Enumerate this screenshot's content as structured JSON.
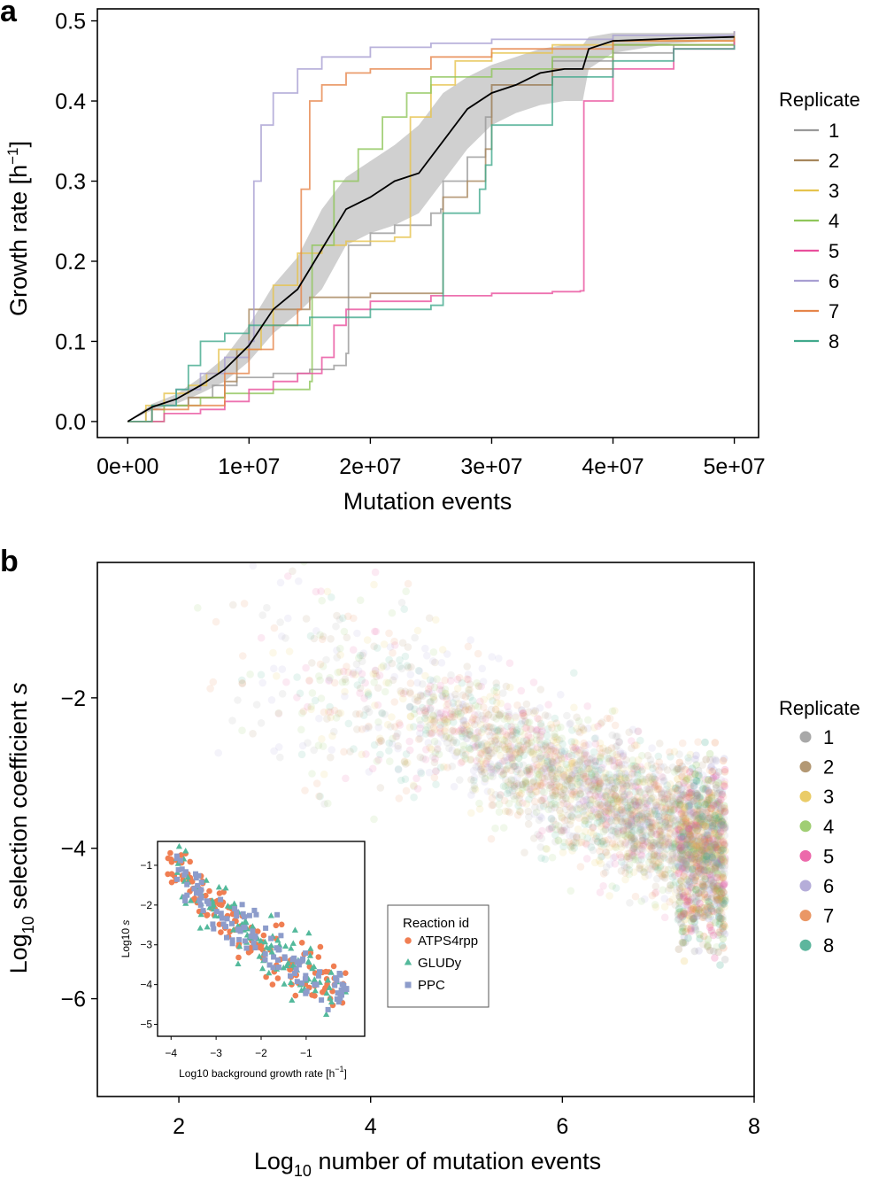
{
  "panel_a_label": "a",
  "panel_b_label": "b",
  "colors": {
    "replicates": [
      "#999999",
      "#a6865c",
      "#e6c34d",
      "#8fc65a",
      "#e94f9c",
      "#a89fd2",
      "#e6854a",
      "#41a98c"
    ],
    "mean_line": "#000000",
    "band": "#c8c8c8",
    "inset": [
      "#f07e52",
      "#53b99b",
      "#8d9ccb"
    ]
  },
  "chart_data": [
    {
      "type": "line",
      "title": "",
      "xlabel": "Mutation events",
      "ylabel": "Growth rate [h",
      "ylabel_sup": "−1",
      "ylabel_end": "]",
      "xlim": [
        -2500000,
        52000000
      ],
      "ylim": [
        -0.02,
        0.515
      ],
      "x_ticks": [
        0,
        10000000,
        20000000,
        30000000,
        40000000,
        50000000
      ],
      "x_tick_labels": [
        "0e+00",
        "1e+07",
        "2e+07",
        "3e+07",
        "4e+07",
        "5e+07"
      ],
      "y_ticks": [
        0.0,
        0.1,
        0.2,
        0.3,
        0.4,
        0.5
      ],
      "y_tick_labels": [
        "0.0",
        "0.1",
        "0.2",
        "0.3",
        "0.4",
        "0.5"
      ],
      "legend_title": "Replicate",
      "legend_position": "right",
      "series": [
        {
          "name": "1",
          "x": [
            0,
            1500000,
            3000000,
            5000000,
            7000000,
            9000000,
            12000000,
            15000000,
            17000000,
            18000000,
            18200000,
            20000000,
            22000000,
            25000000,
            25800000,
            26000000,
            28000000,
            29500000,
            30000000,
            35000000,
            40000000,
            45000000,
            50000000
          ],
          "y": [
            0,
            0.015,
            0.02,
            0.03,
            0.045,
            0.055,
            0.06,
            0.065,
            0.07,
            0.085,
            0.22,
            0.235,
            0.245,
            0.26,
            0.265,
            0.3,
            0.33,
            0.38,
            0.42,
            0.45,
            0.46,
            0.47,
            0.476
          ]
        },
        {
          "name": "2",
          "x": [
            0,
            2000000,
            5000000,
            8000000,
            9000000,
            10000000,
            15000000,
            20000000,
            25000000,
            25800000,
            26000000,
            28000000,
            29500000,
            30000000,
            35000000,
            40000000,
            50000000
          ],
          "y": [
            0,
            0.02,
            0.03,
            0.05,
            0.09,
            0.14,
            0.155,
            0.16,
            0.16,
            0.16,
            0.28,
            0.3,
            0.34,
            0.42,
            0.44,
            0.47,
            0.487
          ]
        },
        {
          "name": "3",
          "x": [
            0,
            1500000,
            3000000,
            5000000,
            6500000,
            7500000,
            11000000,
            12000000,
            14000000,
            16000000,
            18000000,
            20000000,
            22000000,
            23000000,
            23300000,
            25000000,
            27000000,
            30000000,
            35000000,
            40000000,
            50000000
          ],
          "y": [
            0,
            0.02,
            0.035,
            0.045,
            0.06,
            0.09,
            0.12,
            0.17,
            0.21,
            0.22,
            0.225,
            0.225,
            0.23,
            0.23,
            0.38,
            0.42,
            0.45,
            0.46,
            0.47,
            0.475,
            0.485
          ]
        },
        {
          "name": "4",
          "x": [
            0,
            3000000,
            6000000,
            8000000,
            12000000,
            15000000,
            15200000,
            17000000,
            19000000,
            21000000,
            23000000,
            25000000,
            30000000,
            35000000,
            40000000,
            50000000
          ],
          "y": [
            0,
            0.02,
            0.03,
            0.035,
            0.04,
            0.05,
            0.22,
            0.3,
            0.34,
            0.38,
            0.41,
            0.43,
            0.44,
            0.455,
            0.47,
            0.48
          ]
        },
        {
          "name": "5",
          "x": [
            0,
            3000000,
            6000000,
            8000000,
            10000000,
            12000000,
            14000000,
            16000000,
            17000000,
            18000000,
            20000000,
            25000000,
            30000000,
            35000000,
            37300000,
            37600000,
            40000000,
            45000000,
            50000000
          ],
          "y": [
            0,
            0.01,
            0.015,
            0.025,
            0.04,
            0.05,
            0.06,
            0.08,
            0.12,
            0.14,
            0.15,
            0.157,
            0.16,
            0.162,
            0.163,
            0.4,
            0.44,
            0.465,
            0.478
          ]
        },
        {
          "name": "6",
          "x": [
            0,
            2000000,
            4000000,
            6000000,
            8000000,
            10000000,
            10400000,
            11000000,
            12000000,
            14000000,
            16000000,
            20000000,
            25000000,
            30000000,
            40000000,
            50000000
          ],
          "y": [
            0,
            0.02,
            0.04,
            0.06,
            0.08,
            0.1,
            0.3,
            0.37,
            0.41,
            0.44,
            0.455,
            0.467,
            0.472,
            0.477,
            0.482,
            0.487
          ]
        },
        {
          "name": "7",
          "x": [
            0,
            2000000,
            5000000,
            7500000,
            8000000,
            10000000,
            12000000,
            14000000,
            14300000,
            15000000,
            16000000,
            18000000,
            20000000,
            25000000,
            30000000,
            40000000,
            50000000
          ],
          "y": [
            0,
            0.015,
            0.02,
            0.02,
            0.06,
            0.09,
            0.12,
            0.14,
            0.29,
            0.4,
            0.42,
            0.435,
            0.44,
            0.455,
            0.465,
            0.475,
            0.48
          ]
        },
        {
          "name": "8",
          "x": [
            0,
            2000000,
            4000000,
            5000000,
            6000000,
            8000000,
            10000000,
            15000000,
            20000000,
            25000000,
            25800000,
            26000000,
            29000000,
            29500000,
            30000000,
            35000000,
            40000000,
            45000000,
            50000000
          ],
          "y": [
            0,
            0.02,
            0.04,
            0.07,
            0.1,
            0.11,
            0.12,
            0.13,
            0.14,
            0.145,
            0.145,
            0.26,
            0.29,
            0.32,
            0.37,
            0.43,
            0.45,
            0.465,
            0.47
          ]
        }
      ],
      "mean": {
        "x": [
          0,
          2000000,
          4000000,
          6000000,
          8000000,
          10000000,
          12000000,
          14000000,
          16000000,
          17000000,
          18000000,
          20000000,
          22000000,
          24000000,
          26000000,
          28000000,
          30000000,
          32000000,
          34000000,
          36000000,
          37500000,
          38000000,
          40000000,
          45000000,
          50000000
        ],
        "y": [
          0,
          0.018,
          0.028,
          0.045,
          0.065,
          0.095,
          0.14,
          0.165,
          0.215,
          0.24,
          0.265,
          0.28,
          0.3,
          0.31,
          0.35,
          0.39,
          0.41,
          0.42,
          0.435,
          0.44,
          0.44,
          0.465,
          0.475,
          0.478,
          0.48
        ]
      },
      "band": {
        "x": [
          0,
          2000000,
          4000000,
          6000000,
          8000000,
          10000000,
          12000000,
          14000000,
          16000000,
          18000000,
          20000000,
          22000000,
          24000000,
          26000000,
          28000000,
          30000000,
          32000000,
          34000000,
          36000000,
          37500000,
          38000000,
          40000000,
          45000000,
          50000000
        ],
        "lower": [
          0,
          0.014,
          0.022,
          0.035,
          0.05,
          0.075,
          0.11,
          0.135,
          0.165,
          0.22,
          0.235,
          0.245,
          0.26,
          0.3,
          0.34,
          0.37,
          0.385,
          0.395,
          0.4,
          0.4,
          0.44,
          0.46,
          0.472,
          0.476
        ],
        "upper": [
          0,
          0.022,
          0.034,
          0.055,
          0.08,
          0.12,
          0.17,
          0.205,
          0.265,
          0.305,
          0.325,
          0.345,
          0.37,
          0.41,
          0.43,
          0.445,
          0.455,
          0.465,
          0.47,
          0.47,
          0.48,
          0.485,
          0.485,
          0.485
        ]
      }
    },
    {
      "type": "scatter",
      "title": "",
      "xlabel_pre": "Log",
      "xlabel_sub": "10",
      "xlabel_post": " number of mutation events",
      "ylabel_pre": "Log",
      "ylabel_sub": "10",
      "ylabel_post": " selection coefficient ",
      "ylabel_italic": "s",
      "xlim": [
        1.15,
        8.0
      ],
      "ylim": [
        -7.3,
        -0.2
      ],
      "x_ticks": [
        2,
        4,
        6,
        8
      ],
      "x_tick_labels": [
        "2",
        "4",
        "6",
        "8"
      ],
      "y_ticks": [
        -2,
        -4,
        -6
      ],
      "y_tick_labels": [
        "−2",
        "−4",
        "−6"
      ],
      "legend_title": "Replicate",
      "legend_position": "right",
      "legend_labels": [
        "1",
        "2",
        "3",
        "4",
        "5",
        "6",
        "7",
        "8"
      ],
      "point_alpha": 0.12,
      "cloud_trend": {
        "x": [
          2,
          3,
          4,
          5,
          5.5,
          6,
          6.5,
          7,
          7.5,
          7.7
        ],
        "y": [
          -1.2,
          -1.7,
          -2.0,
          -2.4,
          -2.8,
          -3.1,
          -3.4,
          -3.7,
          -3.9,
          -4.2
        ]
      },
      "cloud_spread_sd": 0.45,
      "n_points_estimate": 3000,
      "inset": {
        "type": "scatter",
        "xlabel": "Log10 background growth rate [h",
        "xlabel_sup": "−1",
        "xlabel_end": "]",
        "ylabel": "Log10 ",
        "ylabel_italic": "s",
        "xlim": [
          -4.3,
          0.3
        ],
        "ylim": [
          -5.3,
          -0.4
        ],
        "x_ticks": [
          -4,
          -3,
          -2,
          -1
        ],
        "x_tick_labels": [
          "−4",
          "−3",
          "−2",
          "−1"
        ],
        "y_ticks": [
          -1,
          -2,
          -3,
          -4,
          -5
        ],
        "y_tick_labels": [
          "−1",
          "−2",
          "−3",
          "−4",
          "−5"
        ],
        "trend": {
          "x": [
            -4.1,
            -3.5,
            -3.0,
            -2.5,
            -2.0,
            -1.5,
            -1.0,
            -0.5,
            0.0
          ],
          "y": [
            -0.8,
            -1.5,
            -2.2,
            -2.6,
            -2.9,
            -3.3,
            -3.7,
            -4.0,
            -4.2
          ]
        },
        "spread_sd": 0.35,
        "legend_title": "Reaction id",
        "series": [
          {
            "name": "ATPS4rpp",
            "marker": "circle",
            "n": 140
          },
          {
            "name": "GLUDy",
            "marker": "triangle",
            "n": 110
          },
          {
            "name": "PPC",
            "marker": "square",
            "n": 120
          }
        ]
      }
    }
  ]
}
